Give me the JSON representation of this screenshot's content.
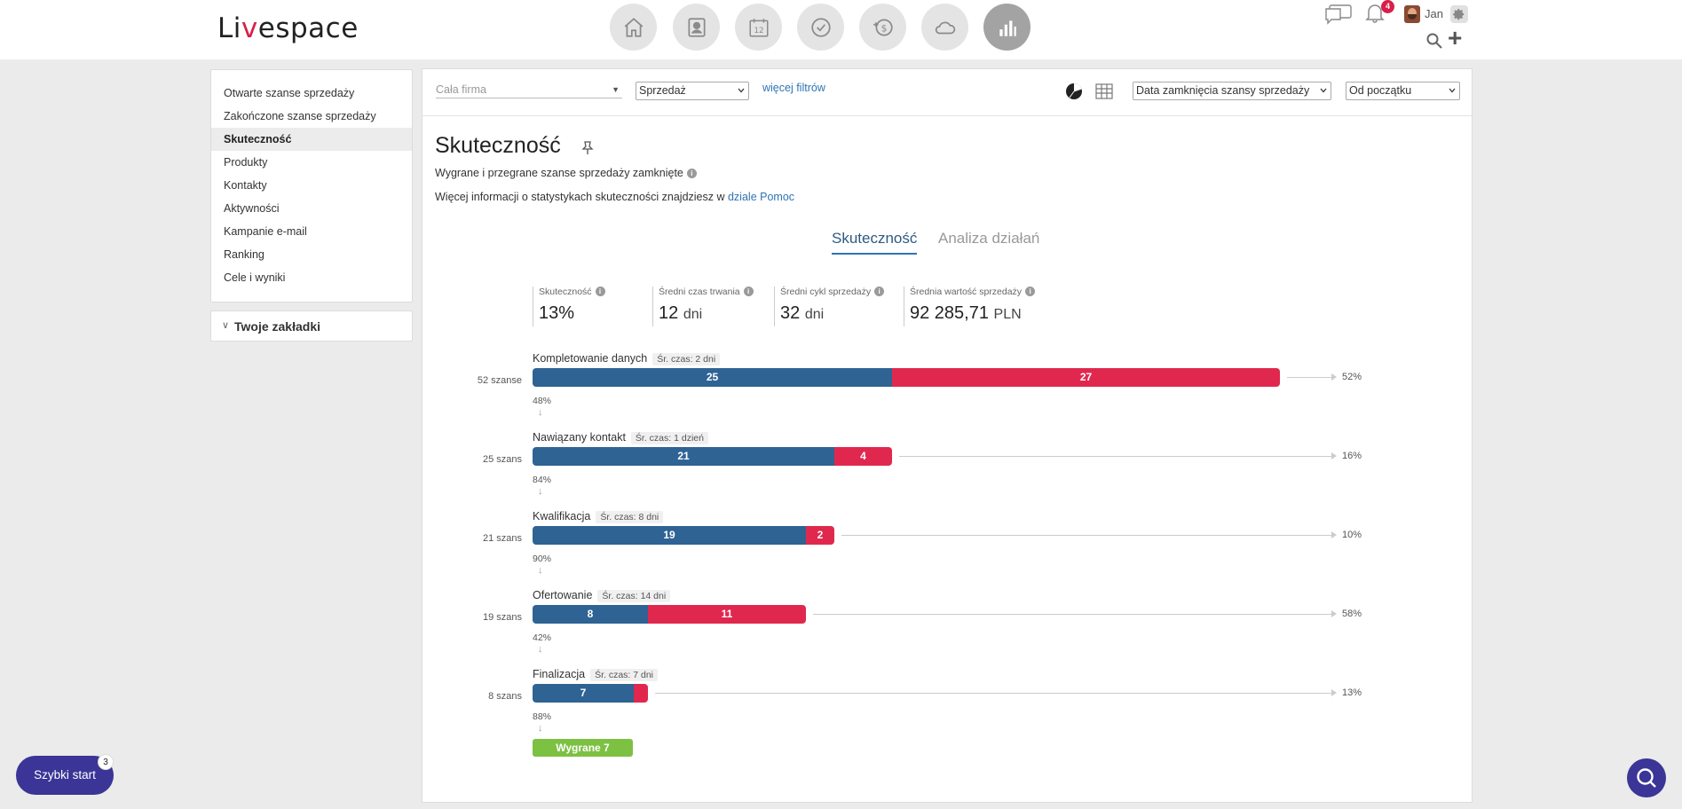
{
  "header": {
    "logo": {
      "pre": "Li",
      "mid": "v",
      "post": "espace"
    },
    "nav": [
      {
        "name": "home-icon"
      },
      {
        "name": "contacts-icon"
      },
      {
        "name": "calendar-icon",
        "label": "12"
      },
      {
        "name": "tasks-icon"
      },
      {
        "name": "deals-icon"
      },
      {
        "name": "cloud-icon"
      },
      {
        "name": "reports-icon",
        "active": true
      }
    ],
    "notifications_count": "4",
    "user_name": "Jan"
  },
  "sidebar": {
    "items": [
      {
        "label": "Otwarte szanse sprzedaży"
      },
      {
        "label": "Zakończone szanse sprzedaży"
      },
      {
        "label": "Skuteczność",
        "active": true
      },
      {
        "label": "Produkty"
      },
      {
        "label": "Kontakty"
      },
      {
        "label": "Aktywności"
      },
      {
        "label": "Kampanie e-mail"
      },
      {
        "label": "Ranking"
      },
      {
        "label": "Cele i wyniki"
      }
    ],
    "bookmarks_label": "Twoje zakładki"
  },
  "filters": {
    "company_placeholder": "Cała firma",
    "process": "Sprzedaż",
    "more_filters": "więcej filtrów",
    "date_field": "Data zamknięcia szansy sprzedaży",
    "period": "Od początku"
  },
  "page": {
    "title": "Skuteczność",
    "subtitle": "Wygrane i przegrane szanse sprzedaży zamknięte",
    "help_text": "Więcej informacji o statystykach skuteczności znajdziesz w ",
    "help_link": "dziale Pomoc",
    "tabs": [
      {
        "label": "Skuteczność",
        "active": true
      },
      {
        "label": "Analiza działań",
        "active": false
      }
    ]
  },
  "kpis": [
    {
      "label": "Skuteczność",
      "value": "13%",
      "unit": ""
    },
    {
      "label": "Średni czas trwania",
      "value": "12",
      "unit": "dni"
    },
    {
      "label": "Średni cykl sprzedaży",
      "value": "32",
      "unit": "dni"
    },
    {
      "label": "Średnia wartość sprzedaży",
      "value": "92 285,71",
      "unit": "PLN"
    }
  ],
  "funnel": {
    "stages": [
      {
        "name": "Kompletowanie danych",
        "avg_time": "Śr. czas: 2 dni",
        "count_label": "52 szanse",
        "won": 25,
        "lost": 27,
        "won_label": "25",
        "lost_label": "27",
        "lost_pct": "52%",
        "conversion": "48%"
      },
      {
        "name": "Nawiązany kontakt",
        "avg_time": "Śr. czas: 1 dzień",
        "count_label": "25 szans",
        "won": 21,
        "lost": 4,
        "won_label": "21",
        "lost_label": "4",
        "lost_pct": "16%",
        "conversion": "84%"
      },
      {
        "name": "Kwalifikacja",
        "avg_time": "Śr. czas: 8 dni",
        "count_label": "21 szans",
        "won": 19,
        "lost": 2,
        "won_label": "19",
        "lost_label": "2",
        "lost_pct": "10%",
        "conversion": "90%"
      },
      {
        "name": "Ofertowanie",
        "avg_time": "Śr. czas: 14 dni",
        "count_label": "19 szans",
        "won": 8,
        "lost": 11,
        "won_label": "8",
        "lost_label": "11",
        "lost_pct": "58%",
        "conversion": "42%"
      },
      {
        "name": "Finalizacja",
        "avg_time": "Śr. czas: 7 dni",
        "count_label": "8 szans",
        "won": 7,
        "lost": 1,
        "won_label": "7",
        "lost_label": "",
        "lost_pct": "13%",
        "conversion": "88%"
      }
    ],
    "won_chip": "Wygrane 7"
  },
  "quick_start": {
    "label": "Szybki start",
    "badge": "3"
  },
  "colors": {
    "won": "#2e6394",
    "lost": "#e0284e",
    "win_chip": "#7cc142",
    "accent": "#2e74b5",
    "brand": "#3a3596"
  }
}
